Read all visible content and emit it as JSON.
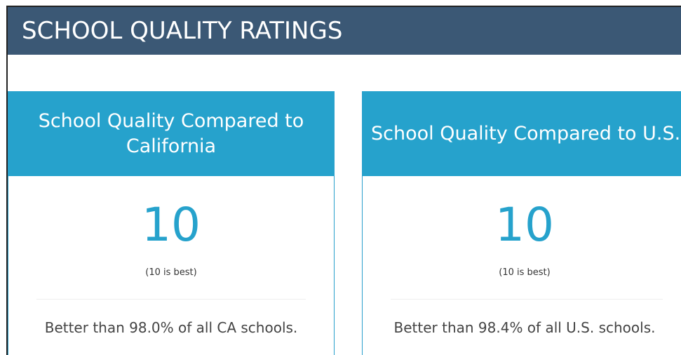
{
  "header": {
    "title": "SCHOOL QUALITY RATINGS"
  },
  "cards": [
    {
      "title": "School Quality Compared to California",
      "score": "10",
      "scale_note": "(10 is best)",
      "detail": "Better than 98.0% of all CA schools."
    },
    {
      "title": "School Quality Compared to U.S.",
      "score": "10",
      "scale_note": "(10 is best)",
      "detail": "Better than 98.4% of all U.S. schools."
    }
  ]
}
